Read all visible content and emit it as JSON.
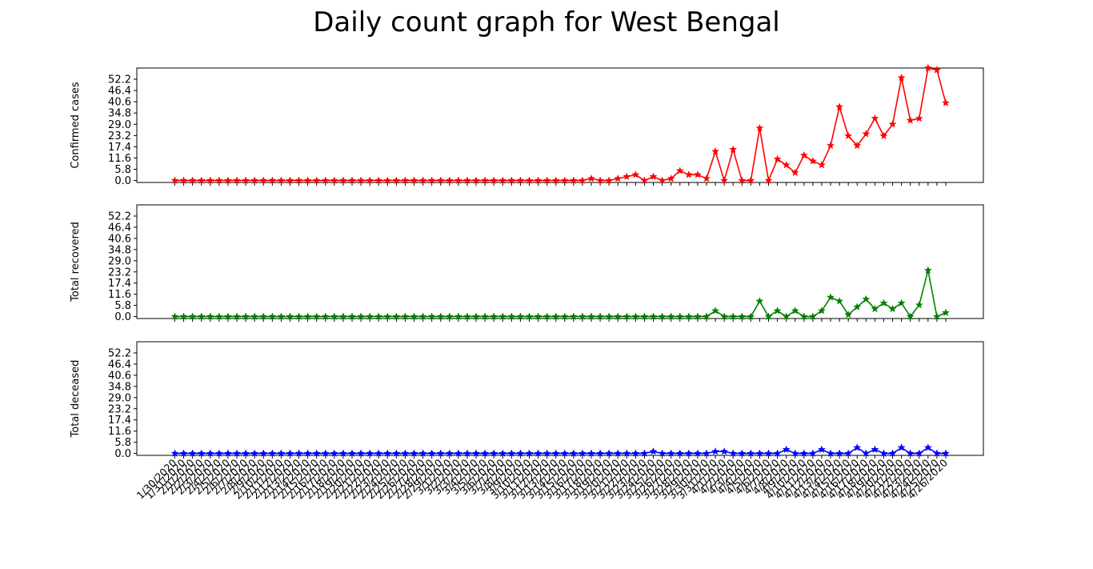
{
  "title": "Daily count graph for West Bengal",
  "chart_data": {
    "type": "line",
    "title": "Daily count graph for West Bengal",
    "x": [
      "1/30/2020",
      "1/31/2020",
      "2/1/2020",
      "2/2/2020",
      "2/3/2020",
      "2/4/2020",
      "2/5/2020",
      "2/6/2020",
      "2/7/2020",
      "2/8/2020",
      "2/9/2020",
      "2/10/2020",
      "2/11/2020",
      "2/12/2020",
      "2/13/2020",
      "2/14/2020",
      "2/15/2020",
      "2/16/2020",
      "2/17/2020",
      "2/18/2020",
      "2/19/2020",
      "2/20/2020",
      "2/21/2020",
      "2/22/2020",
      "2/23/2020",
      "2/24/2020",
      "2/25/2020",
      "2/26/2020",
      "2/27/2020",
      "2/28/2020",
      "2/29/2020",
      "3/1/2020",
      "3/2/2020",
      "3/3/2020",
      "3/4/2020",
      "3/5/2020",
      "3/6/2020",
      "3/7/2020",
      "3/8/2020",
      "3/9/2020",
      "3/10/2020",
      "3/11/2020",
      "3/12/2020",
      "3/13/2020",
      "3/14/2020",
      "3/15/2020",
      "3/16/2020",
      "3/17/2020",
      "3/18/2020",
      "3/19/2020",
      "3/20/2020",
      "3/21/2020",
      "3/22/2020",
      "3/23/2020",
      "3/24/2020",
      "3/25/2020",
      "3/26/2020",
      "3/27/2020",
      "3/28/2020",
      "3/29/2020",
      "3/30/2020",
      "3/31/2020",
      "4/1/2020",
      "4/2/2020",
      "4/3/2020",
      "4/4/2020",
      "4/5/2020",
      "4/6/2020",
      "4/7/2020",
      "4/8/2020",
      "4/9/2020",
      "4/10/2020",
      "4/11/2020",
      "4/12/2020",
      "4/13/2020",
      "4/14/2020",
      "4/15/2020",
      "4/16/2020",
      "4/17/2020",
      "4/18/2020",
      "4/19/2020",
      "4/20/2020",
      "4/21/2020",
      "4/22/2020",
      "4/23/2020",
      "4/24/2020",
      "4/25/2020",
      "4/26/2020"
    ],
    "xtick_step": 1,
    "yticks": [
      "0.0",
      "5.8",
      "11.6",
      "17.4",
      "23.2",
      "29.0",
      "34.8",
      "40.6",
      "46.4",
      "52.2"
    ],
    "ylim": [
      -1,
      58
    ],
    "panels": [
      {
        "ylabel": "Confirmed cases",
        "color": "#ff0000",
        "marker": "star",
        "values": [
          0,
          0,
          0,
          0,
          0,
          0,
          0,
          0,
          0,
          0,
          0,
          0,
          0,
          0,
          0,
          0,
          0,
          0,
          0,
          0,
          0,
          0,
          0,
          0,
          0,
          0,
          0,
          0,
          0,
          0,
          0,
          0,
          0,
          0,
          0,
          0,
          0,
          0,
          0,
          0,
          0,
          0,
          0,
          0,
          0,
          0,
          0,
          1,
          0,
          0,
          1,
          2,
          3,
          0,
          2,
          0,
          1,
          5,
          3,
          3,
          1,
          15,
          0,
          16,
          0,
          0,
          27,
          0,
          11,
          8,
          4,
          13,
          10,
          8,
          18,
          38,
          23,
          18,
          24,
          32,
          23,
          29,
          53,
          31,
          32,
          58,
          57,
          40
        ]
      },
      {
        "ylabel": "Total recovered",
        "color": "#008000",
        "marker": "star",
        "values": [
          0,
          0,
          0,
          0,
          0,
          0,
          0,
          0,
          0,
          0,
          0,
          0,
          0,
          0,
          0,
          0,
          0,
          0,
          0,
          0,
          0,
          0,
          0,
          0,
          0,
          0,
          0,
          0,
          0,
          0,
          0,
          0,
          0,
          0,
          0,
          0,
          0,
          0,
          0,
          0,
          0,
          0,
          0,
          0,
          0,
          0,
          0,
          0,
          0,
          0,
          0,
          0,
          0,
          0,
          0,
          0,
          0,
          0,
          0,
          0,
          0,
          3,
          0,
          0,
          0,
          0,
          8,
          0,
          3,
          0,
          3,
          0,
          0,
          3,
          10,
          8,
          1,
          5,
          9,
          4,
          7,
          4,
          7,
          0,
          6,
          24,
          0,
          2
        ]
      },
      {
        "ylabel": "Total deceased",
        "color": "#0000ff",
        "marker": "star",
        "values": [
          0,
          0,
          0,
          0,
          0,
          0,
          0,
          0,
          0,
          0,
          0,
          0,
          0,
          0,
          0,
          0,
          0,
          0,
          0,
          0,
          0,
          0,
          0,
          0,
          0,
          0,
          0,
          0,
          0,
          0,
          0,
          0,
          0,
          0,
          0,
          0,
          0,
          0,
          0,
          0,
          0,
          0,
          0,
          0,
          0,
          0,
          0,
          0,
          0,
          0,
          0,
          0,
          0,
          0,
          1,
          0,
          0,
          0,
          0,
          0,
          0,
          1,
          1,
          0,
          0,
          0,
          0,
          0,
          0,
          2,
          0,
          0,
          0,
          2,
          0,
          0,
          0,
          3,
          0,
          2,
          0,
          0,
          3,
          0,
          0,
          3,
          0,
          0
        ]
      }
    ]
  }
}
